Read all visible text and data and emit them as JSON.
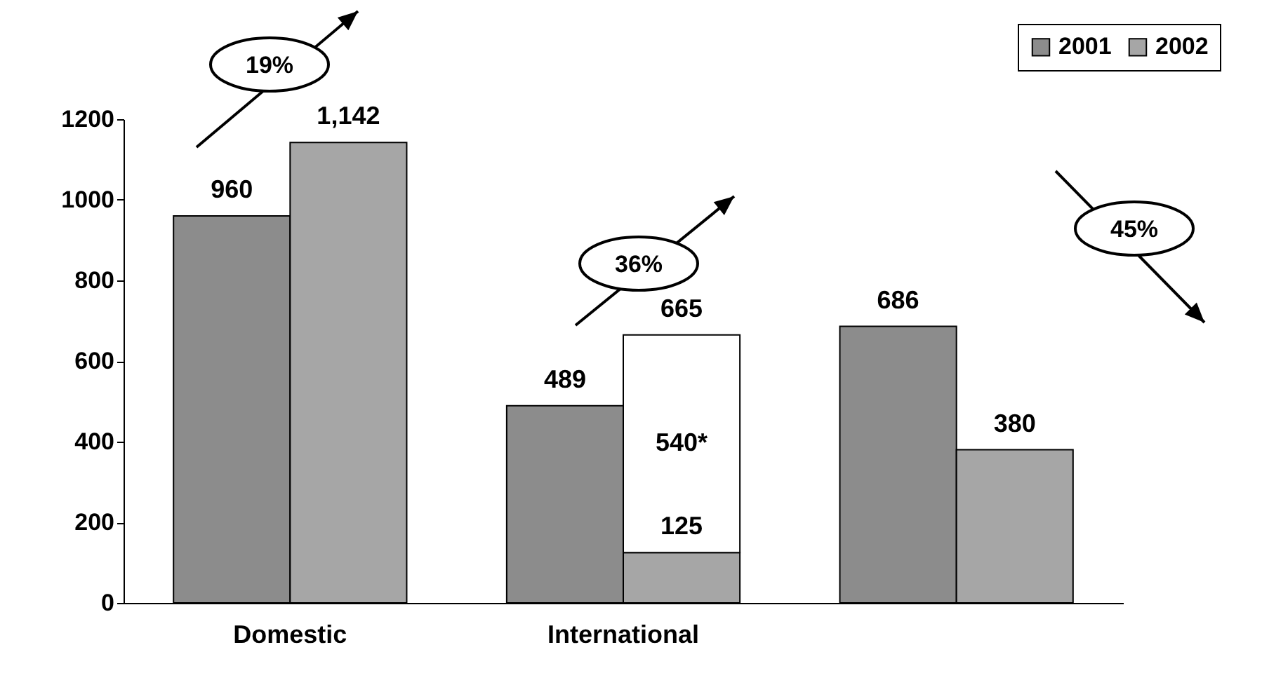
{
  "chart_data": {
    "type": "bar",
    "categories": [
      "Domestic",
      "International",
      null
    ],
    "series": [
      {
        "name": "2001",
        "color": "#8c8c8c",
        "values": [
          960,
          489,
          686
        ],
        "value_labels": [
          "960",
          "489",
          "686"
        ]
      },
      {
        "name": "2002",
        "color": "#a6a6a6",
        "values": [
          1142,
          125,
          380
        ],
        "value_labels": [
          "1,142",
          "125",
          "380"
        ]
      },
      {
        "color": "#ffffff",
        "base": [
          null,
          125,
          null
        ],
        "values": [
          null,
          540,
          null
        ],
        "value_labels": [
          null,
          "540*",
          null
        ]
      }
    ],
    "ylim": [
      0,
      1200
    ],
    "yticks": [
      0,
      200,
      400,
      600,
      800,
      1000,
      1200
    ],
    "legend": "top right",
    "grid": false,
    "annotations": [
      "19%",
      "36%",
      "45%",
      {
        "text": "665",
        "x": "International",
        "y": 665
      }
    ]
  }
}
